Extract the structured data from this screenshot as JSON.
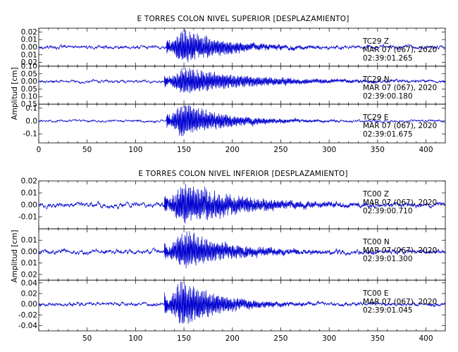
{
  "chart_data": [
    {
      "type": "line",
      "title": "E TORRES COLON NIVEL SUPERIOR [DESPLAZAMIENTO]",
      "ylabel": "Amplitud [cm]",
      "xlabel": "",
      "xlim": [
        0,
        420
      ],
      "x_ticks": [
        0,
        50,
        100,
        150,
        200,
        250,
        300,
        350,
        400
      ],
      "panels": [
        {
          "station": "TC29",
          "component": "Z",
          "date": "MAR 07 (067), 2020",
          "time": "02:39:01.265",
          "ylim": [
            -0.025,
            0.025
          ],
          "y_ticks": [
            -0.02,
            -0.01,
            0.0,
            0.01,
            0.02
          ],
          "y_tick_labels": [
            "0.02",
            "0.01",
            "0.00",
            "0.01",
            "0.02"
          ],
          "onset": 132,
          "peak_time": 148,
          "peak_amplitude": 0.024,
          "noise_amplitude": 0.001,
          "decay": 45
        },
        {
          "station": "TC29",
          "component": "N",
          "date": "MAR 07 (067), 2020",
          "time": "02:39:00.180",
          "ylim": [
            -0.15,
            0.1
          ],
          "y_ticks": [
            -0.15,
            -0.1,
            -0.05,
            0.0,
            0.05,
            0.1
          ],
          "y_tick_labels": [
            "0.15",
            "0.10",
            "0.05",
            "0.00",
            "0.05",
            "0.10"
          ],
          "onset": 130,
          "peak_time": 150,
          "peak_amplitude": 0.09,
          "noise_amplitude": 0.004,
          "decay": 70
        },
        {
          "station": "TC29",
          "component": "E",
          "date": "MAR 07 (067), 2020",
          "time": "02:39:01.675",
          "ylim": [
            -0.17,
            0.13
          ],
          "y_ticks": [
            -0.1,
            0.0,
            0.1
          ],
          "y_tick_labels": [
            "-0.1",
            "0.0",
            "0.1"
          ],
          "onset": 132,
          "peak_time": 148,
          "peak_amplitude": 0.14,
          "noise_amplitude": 0.004,
          "decay": 45
        }
      ]
    },
    {
      "type": "line",
      "title": "E TORRES COLON NIVEL INFERIOR [DESPLAZAMIENTO]",
      "ylabel": "Amplitud [cm]",
      "xlabel": "",
      "xlim": [
        0,
        420
      ],
      "x_ticks": [
        50,
        100,
        150,
        200,
        250,
        300,
        350,
        400
      ],
      "panels": [
        {
          "station": "TC00",
          "component": "Z",
          "date": "MAR 07 (067), 2020",
          "time": "02:39:00.710",
          "ylim": [
            -0.02,
            0.02
          ],
          "y_ticks": [
            -0.01,
            0.0,
            0.01,
            0.02
          ],
          "y_tick_labels": [
            "-0.01",
            "0.00",
            "0.01",
            "0.02"
          ],
          "onset": 130,
          "peak_time": 150,
          "peak_amplitude": 0.018,
          "noise_amplitude": 0.0009,
          "decay": 60
        },
        {
          "station": "TC00",
          "component": "N",
          "date": "MAR 07 (067), 2020",
          "time": "02:39:01.300",
          "ylim": [
            -0.025,
            0.02
          ],
          "y_ticks": [
            -0.02,
            -0.01,
            0.0,
            0.01
          ],
          "y_tick_labels": [
            "0.02",
            "0.01",
            "0.00",
            "0.01"
          ],
          "onset": 130,
          "peak_time": 150,
          "peak_amplitude": 0.017,
          "noise_amplitude": 0.0009,
          "decay": 50
        },
        {
          "station": "TC00",
          "component": "E",
          "date": "MAR 07 (067), 2020",
          "time": "02:39:01.045",
          "ylim": [
            -0.05,
            0.045
          ],
          "y_ticks": [
            -0.04,
            -0.02,
            0.0,
            0.02,
            0.04
          ],
          "y_tick_labels": [
            "-0.04",
            "-0.02",
            "0.00",
            "0.02",
            "0.04"
          ],
          "onset": 130,
          "peak_time": 148,
          "peak_amplitude": 0.045,
          "noise_amplitude": 0.0015,
          "decay": 40
        }
      ]
    }
  ],
  "colors": {
    "trace": "#0000d0",
    "frame": "#000000",
    "background": "#ffffff"
  }
}
